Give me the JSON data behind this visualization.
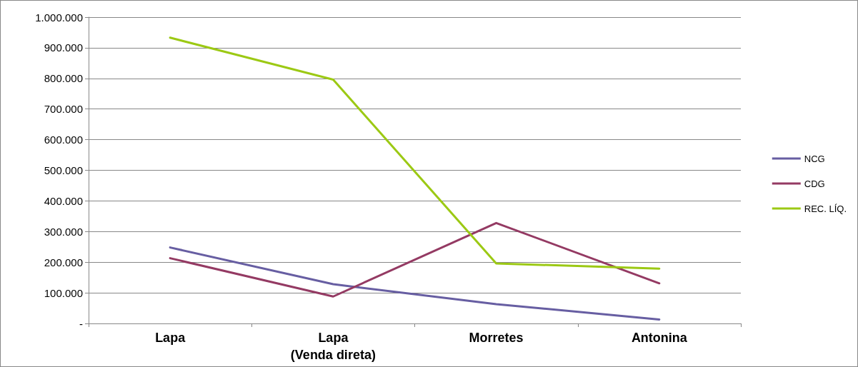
{
  "chart_data": {
    "type": "line",
    "categories": [
      "Lapa",
      "Lapa\n(Venda direta)",
      "Morretes",
      "Antonina"
    ],
    "series": [
      {
        "name": "NCG",
        "color": "#675ea2",
        "values": [
          248000,
          128000,
          63000,
          13000
        ]
      },
      {
        "name": "CDG",
        "color": "#943a63",
        "values": [
          213000,
          88000,
          328000,
          131000
        ]
      },
      {
        "name": "REC. LÍQ.",
        "color": "#9cc914",
        "values": [
          933000,
          796000,
          196000,
          179000
        ]
      }
    ],
    "ylim": [
      0,
      1000000
    ],
    "yticks": [
      {
        "value": 0,
        "label": "-"
      },
      {
        "value": 100000,
        "label": "100.000"
      },
      {
        "value": 200000,
        "label": "200.000"
      },
      {
        "value": 300000,
        "label": "300.000"
      },
      {
        "value": 400000,
        "label": "400.000"
      },
      {
        "value": 500000,
        "label": "500.000"
      },
      {
        "value": 600000,
        "label": "600.000"
      },
      {
        "value": 700000,
        "label": "700.000"
      },
      {
        "value": 800000,
        "label": "800.000"
      },
      {
        "value": 900000,
        "label": "900.000"
      },
      {
        "value": 1000000,
        "label": "1.000.000"
      }
    ],
    "grid": "y",
    "legend": "right",
    "marker": "none",
    "line_style": "solid"
  }
}
